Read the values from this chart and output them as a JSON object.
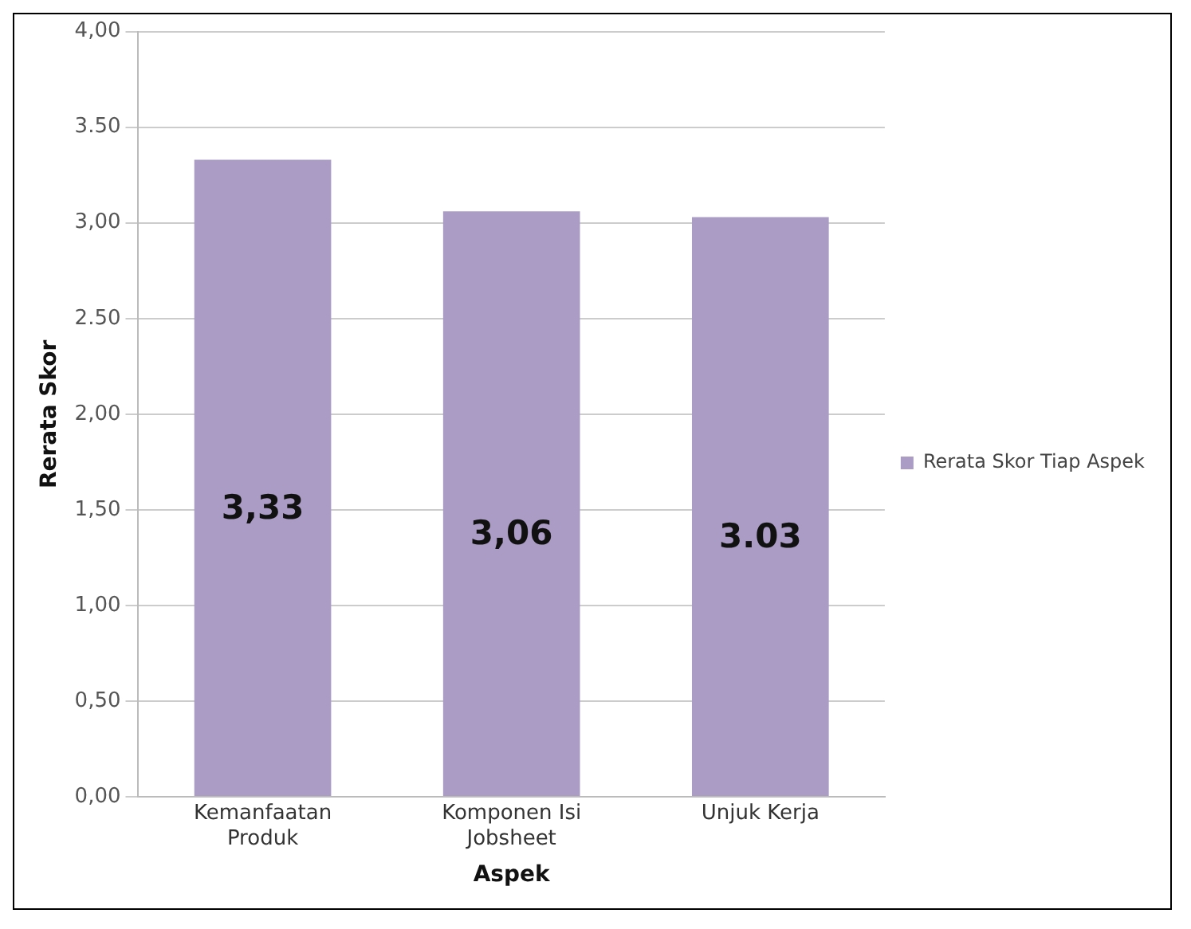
{
  "chart_data": {
    "type": "bar",
    "xlabel": "Aspek",
    "ylabel": "Rerata Skor",
    "categories": [
      "Kemanfaatan Produk",
      "Komponen Isi Jobsheet",
      "Unjuk Kerja"
    ],
    "series": [
      {
        "name": "Rerata Skor Tiap Aspek",
        "color": "#ab9cc6",
        "values": [
          3.33,
          3.06,
          3.03
        ],
        "value_labels": [
          "3,33",
          "3,06",
          "3.03"
        ]
      }
    ],
    "ylim": [
      0,
      4
    ],
    "yticks": [
      {
        "value": 0,
        "label": "0,00"
      },
      {
        "value": 0.5,
        "label": "0,50"
      },
      {
        "value": 1,
        "label": "1,00"
      },
      {
        "value": 1.5,
        "label": "1,50"
      },
      {
        "value": 2,
        "label": "2,00"
      },
      {
        "value": 2.5,
        "label": "2.50"
      },
      {
        "value": 3,
        "label": "3,00"
      },
      {
        "value": 3.5,
        "label": "3.50"
      },
      {
        "value": 4,
        "label": "4,00"
      }
    ],
    "grid": "y",
    "legend": "right"
  }
}
